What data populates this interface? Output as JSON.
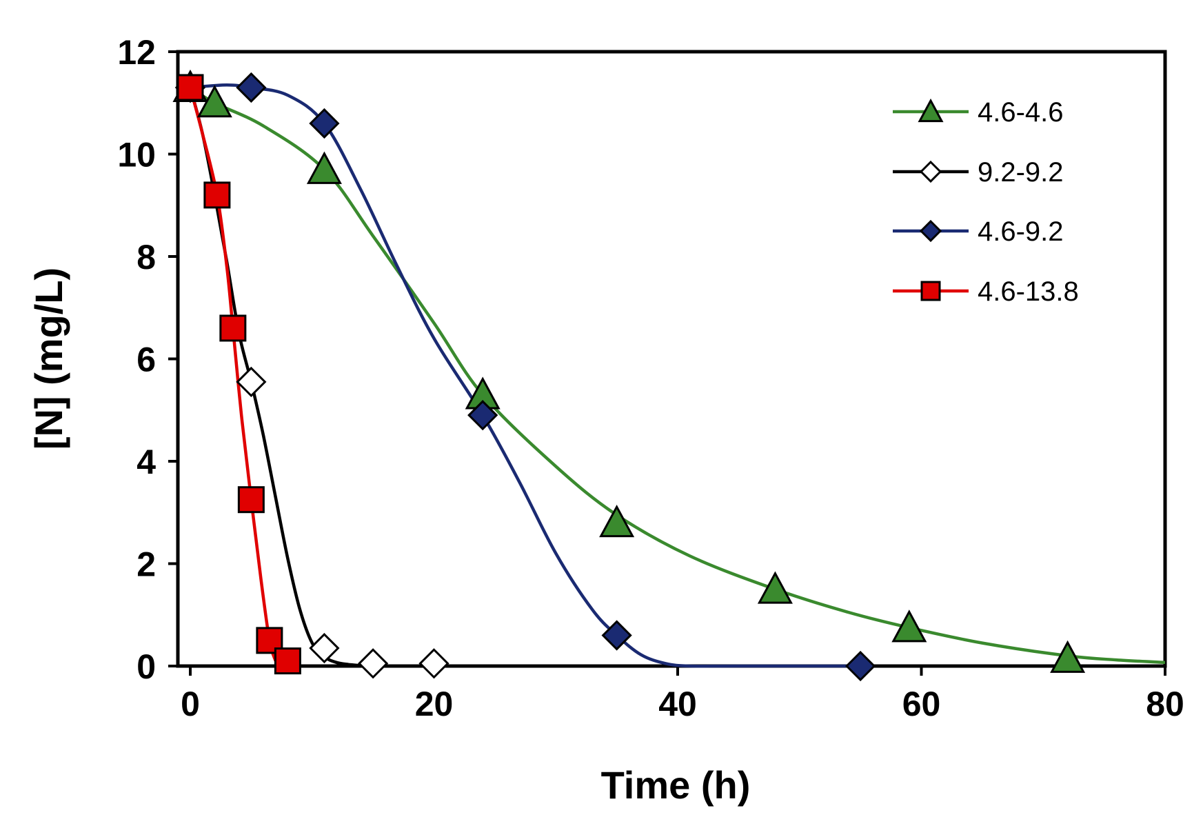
{
  "chart_data": {
    "type": "line",
    "title": "",
    "xlabel": "Time (h)",
    "ylabel": "[N] (mg/L)",
    "xlim": [
      0,
      80
    ],
    "ylim": [
      0,
      12
    ],
    "xticks": [
      0,
      20,
      40,
      60,
      80
    ],
    "yticks": [
      0,
      2,
      4,
      6,
      8,
      10,
      12
    ],
    "xtick_labels": [
      "0",
      "20",
      "40",
      "60",
      "80"
    ],
    "ytick_labels": [
      "0",
      "2",
      "4",
      "6",
      "8",
      "10",
      "12"
    ],
    "grid": false,
    "legend_position": "top-right",
    "series": [
      {
        "name": "4.6-4.6",
        "marker": "triangle",
        "color": "#3a8a2e",
        "marker_fill": "#3a8a2e",
        "x": [
          0,
          2,
          11,
          24,
          35,
          48,
          59,
          72
        ],
        "y": [
          11.3,
          11.0,
          9.7,
          5.3,
          2.8,
          1.5,
          0.75,
          0.15
        ],
        "curve_x": [
          0,
          2,
          6,
          11,
          15,
          20,
          24,
          30,
          35,
          41,
          48,
          54,
          59,
          65,
          72,
          76,
          80
        ],
        "curve_y": [
          11.3,
          11.0,
          10.55,
          9.7,
          8.4,
          6.7,
          5.3,
          3.9,
          2.95,
          2.15,
          1.5,
          1.05,
          0.75,
          0.45,
          0.2,
          0.12,
          0.07
        ]
      },
      {
        "name": "9.2-9.2",
        "marker": "diamond-open",
        "color": "#000000",
        "marker_fill": "#ffffff",
        "x": [
          0,
          5,
          11,
          15,
          20
        ],
        "y": [
          11.3,
          5.55,
          0.35,
          0.05,
          0.05
        ],
        "curve_x": [
          0,
          1,
          2,
          3,
          4,
          5,
          6,
          7,
          8,
          9,
          10,
          11,
          12,
          13,
          14,
          15,
          20
        ],
        "curve_y": [
          11.3,
          10.4,
          9.2,
          7.9,
          6.5,
          5.55,
          4.5,
          3.3,
          2.1,
          1.1,
          0.45,
          0.18,
          0.07,
          0.03,
          0.01,
          0.0,
          0.0
        ]
      },
      {
        "name": "4.6-9.2",
        "marker": "diamond",
        "color": "#1a2a72",
        "marker_fill": "#1a2a72",
        "x": [
          0,
          5,
          11,
          24,
          35,
          55
        ],
        "y": [
          11.3,
          11.3,
          10.6,
          4.9,
          0.6,
          0.0
        ],
        "curve_x": [
          0,
          3,
          5,
          8,
          11,
          14,
          17,
          20,
          24,
          27,
          30,
          33,
          35,
          37,
          39,
          41,
          45,
          55
        ],
        "curve_y": [
          11.3,
          11.35,
          11.3,
          11.15,
          10.6,
          9.3,
          7.8,
          6.4,
          4.9,
          3.6,
          2.2,
          1.1,
          0.6,
          0.22,
          0.05,
          0.0,
          0.0,
          0.0
        ]
      },
      {
        "name": "4.6-13.8",
        "marker": "square",
        "color": "#e00000",
        "marker_fill": "#e00000",
        "x": [
          0,
          2.2,
          3.5,
          5,
          6.5,
          8
        ],
        "y": [
          11.3,
          9.2,
          6.6,
          3.25,
          0.5,
          0.1
        ],
        "curve_x": [
          0,
          1,
          2.2,
          3,
          3.5,
          4.2,
          5,
          5.8,
          6.5,
          7
        ],
        "curve_y": [
          11.3,
          10.4,
          9.2,
          7.8,
          6.6,
          4.9,
          3.25,
          1.7,
          0.5,
          0.1
        ]
      }
    ]
  }
}
